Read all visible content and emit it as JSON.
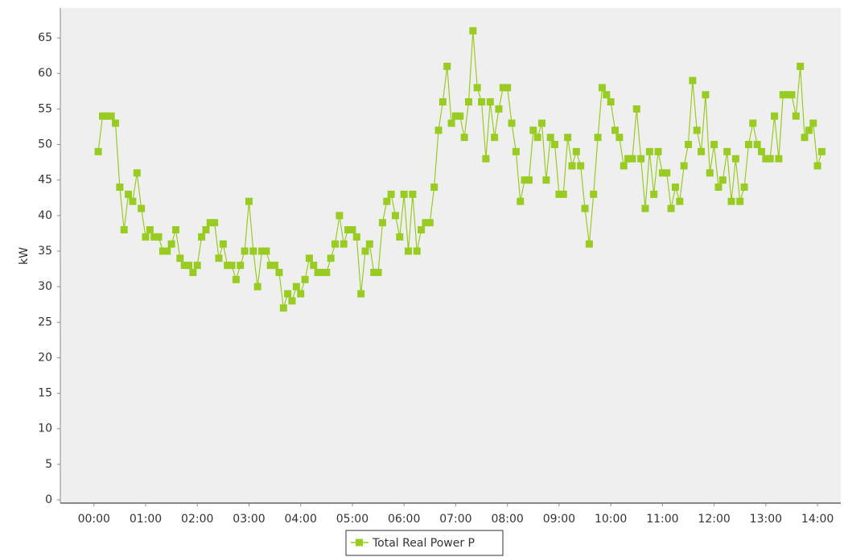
{
  "chart_data": {
    "type": "line",
    "y_label": "kW",
    "x": [
      5,
      10,
      15,
      20,
      25,
      30,
      35,
      40,
      45,
      50,
      55,
      60,
      65,
      70,
      75,
      80,
      85,
      90,
      95,
      100,
      105,
      110,
      115,
      120,
      125,
      130,
      135,
      140,
      145,
      150,
      155,
      160,
      165,
      170,
      175,
      180,
      185,
      190,
      195,
      200,
      205,
      210,
      215,
      220,
      225,
      230,
      235,
      240,
      245,
      250,
      255,
      260,
      265,
      270,
      275,
      280,
      285,
      290,
      295,
      300,
      305,
      310,
      315,
      320,
      325,
      330,
      335,
      340,
      345,
      350,
      355,
      360,
      365,
      370,
      375,
      380,
      385,
      390,
      395,
      400,
      405,
      410,
      415,
      420,
      425,
      430,
      435,
      440,
      445,
      450,
      455,
      460,
      465,
      470,
      475,
      480,
      485,
      490,
      495,
      500,
      505,
      510,
      515,
      520,
      525,
      530,
      535,
      540,
      545,
      550,
      555,
      560,
      565,
      570,
      575,
      580,
      585,
      590,
      595,
      600,
      605,
      610,
      615,
      620,
      625,
      630,
      635,
      640,
      645,
      650,
      655,
      660,
      665,
      670,
      675,
      680,
      685,
      690,
      695,
      700,
      705,
      710,
      715,
      720,
      725,
      730,
      735,
      740,
      745,
      750,
      755,
      760,
      765,
      770,
      775,
      780,
      785,
      790,
      795,
      800,
      805,
      810,
      815,
      820,
      825,
      830,
      835,
      840,
      845
    ],
    "series": [
      {
        "name": "Total Real Power P",
        "color": "#99cc22",
        "values": [
          49,
          54,
          54,
          54,
          53,
          44,
          38,
          43,
          42,
          46,
          41,
          37,
          38,
          37,
          37,
          35,
          35,
          36,
          38,
          34,
          33,
          33,
          32,
          33,
          37,
          38,
          39,
          39,
          34,
          36,
          33,
          33,
          31,
          33,
          35,
          42,
          35,
          30,
          35,
          35,
          33,
          33,
          32,
          27,
          29,
          28,
          30,
          29,
          31,
          34,
          33,
          32,
          32,
          32,
          34,
          36,
          40,
          36,
          38,
          38,
          37,
          29,
          35,
          36,
          32,
          32,
          39,
          42,
          43,
          40,
          37,
          43,
          35,
          43,
          35,
          38,
          39,
          39,
          44,
          52,
          56,
          61,
          53,
          54,
          54,
          51,
          56,
          66,
          58,
          56,
          48,
          56,
          51,
          55,
          58,
          58,
          53,
          49,
          42,
          45,
          45,
          52,
          51,
          53,
          45,
          51,
          50,
          43,
          43,
          51,
          47,
          49,
          47,
          41,
          36,
          43,
          51,
          58,
          57,
          56,
          52,
          51,
          47,
          48,
          48,
          55,
          48,
          41,
          49,
          43,
          49,
          46,
          46,
          41,
          44,
          42,
          47,
          50,
          59,
          52,
          49,
          57,
          46,
          50,
          44,
          45,
          49,
          42,
          48,
          42,
          44,
          50,
          53,
          50,
          49,
          48,
          48,
          54,
          48,
          57,
          57,
          57,
          54,
          61,
          51,
          52,
          53,
          47,
          49
        ]
      }
    ],
    "xlim": [
      -39,
      867
    ],
    "xticks": [
      {
        "value": 0,
        "label": "00:00"
      },
      {
        "value": 60,
        "label": "01:00"
      },
      {
        "value": 120,
        "label": "02:00"
      },
      {
        "value": 180,
        "label": "03:00"
      },
      {
        "value": 240,
        "label": "04:00"
      },
      {
        "value": 300,
        "label": "05:00"
      },
      {
        "value": 360,
        "label": "06:00"
      },
      {
        "value": 420,
        "label": "07:00"
      },
      {
        "value": 480,
        "label": "08:00"
      },
      {
        "value": 540,
        "label": "09:00"
      },
      {
        "value": 600,
        "label": "10:00"
      },
      {
        "value": 660,
        "label": "11:00"
      },
      {
        "value": 720,
        "label": "12:00"
      },
      {
        "value": 780,
        "label": "13:00"
      },
      {
        "value": 840,
        "label": "14:00"
      }
    ],
    "ylim": [
      -0.45,
      69.2
    ],
    "yticks": [
      0,
      5,
      10,
      15,
      20,
      25,
      30,
      35,
      40,
      45,
      50,
      55,
      60,
      65
    ]
  }
}
